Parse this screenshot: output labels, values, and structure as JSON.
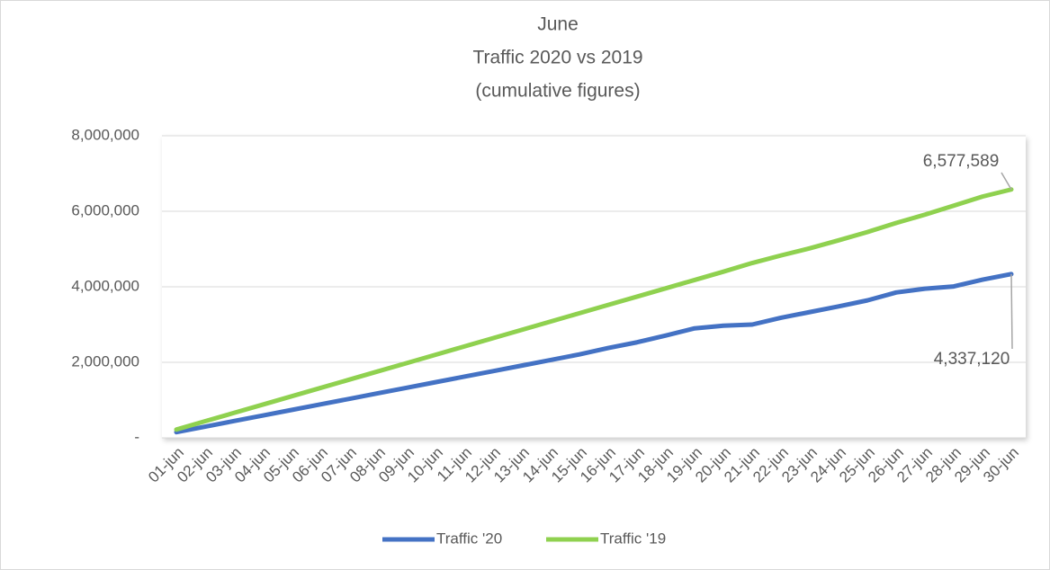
{
  "chart_data": {
    "type": "line",
    "title": [
      "June",
      "Traffic 2020 vs 2019",
      "(cumulative figures)"
    ],
    "categories": [
      "01-jun",
      "02-jun",
      "03-jun",
      "04-jun",
      "05-jun",
      "06-jun",
      "07-jun",
      "08-jun",
      "09-jun",
      "10-jun",
      "11-jun",
      "12-jun",
      "13-jun",
      "14-jun",
      "15-jun",
      "16-jun",
      "17-jun",
      "18-jun",
      "19-jun",
      "20-jun",
      "21-jun",
      "22-jun",
      "23-jun",
      "24-jun",
      "25-jun",
      "26-jun",
      "27-jun",
      "28-jun",
      "29-jun",
      "30-jun"
    ],
    "series": [
      {
        "name": "Traffic '20",
        "color": "#4472c4",
        "values": [
          150000,
          297000,
          444000,
          591000,
          738000,
          885000,
          1032000,
          1179000,
          1326000,
          1473000,
          1620000,
          1767000,
          1914000,
          2061000,
          2210000,
          2380000,
          2530000,
          2710000,
          2900000,
          2970000,
          3000000,
          3180000,
          3330000,
          3480000,
          3640000,
          3850000,
          3950000,
          4010000,
          4190000,
          4337120
        ],
        "value_labels": [
          null,
          null,
          null,
          null,
          null,
          null,
          null,
          null,
          null,
          null,
          null,
          null,
          null,
          null,
          null,
          null,
          null,
          null,
          null,
          null,
          null,
          null,
          null,
          null,
          null,
          null,
          null,
          null,
          null,
          "4,337,120"
        ]
      },
      {
        "name": "Traffic '19",
        "color": "#8fd14f",
        "values": [
          220000,
          440000,
          660000,
          880000,
          1100000,
          1320000,
          1540000,
          1760000,
          1980000,
          2200000,
          2420000,
          2640000,
          2860000,
          3080000,
          3300000,
          3520000,
          3740000,
          3960000,
          4180000,
          4400000,
          4630000,
          4830000,
          5020000,
          5230000,
          5450000,
          5690000,
          5910000,
          6150000,
          6390000,
          6577589
        ],
        "value_labels": [
          null,
          null,
          null,
          null,
          null,
          null,
          null,
          null,
          null,
          null,
          null,
          null,
          null,
          null,
          null,
          null,
          null,
          null,
          null,
          null,
          null,
          null,
          null,
          null,
          null,
          null,
          null,
          null,
          null,
          "6,577,589"
        ]
      }
    ],
    "ylim": [
      0,
      8000000
    ],
    "yticks": [
      {
        "value": 0,
        "label": "-"
      },
      {
        "value": 2000000,
        "label": "2,000,000"
      },
      {
        "value": 4000000,
        "label": "4,000,000"
      },
      {
        "value": 6000000,
        "label": "6,000,000"
      },
      {
        "value": 8000000,
        "label": "8,000,000"
      }
    ],
    "grid": true
  }
}
